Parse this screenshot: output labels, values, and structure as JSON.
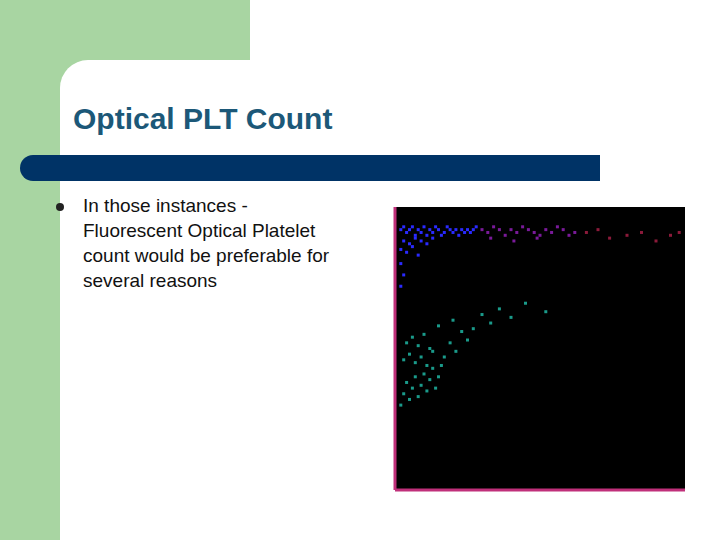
{
  "slide": {
    "title": "Optical PLT Count",
    "bullets": [
      "In those instances - Fluorescent Optical Platelet count would be preferable for several reasons"
    ]
  },
  "chart_data": {
    "type": "scatter",
    "xlim": [
      0,
      100
    ],
    "ylim": [
      0,
      100
    ],
    "xticks": [
      0,
      20,
      40,
      60,
      80,
      100
    ],
    "yticks": [
      0,
      20,
      40,
      60,
      80,
      100
    ],
    "tick_labels": false,
    "grid": false,
    "marker": "square",
    "series": [
      {
        "color": "#2a2aff",
        "x": [
          2,
          3,
          4,
          5,
          6,
          7,
          8,
          9,
          10,
          11,
          12,
          13,
          14,
          15,
          16,
          17,
          18,
          19,
          20,
          21,
          22,
          23,
          24,
          25,
          26,
          27,
          28,
          3,
          5,
          7,
          9,
          11,
          13,
          2,
          4,
          6,
          2,
          3,
          2,
          8
        ],
        "values": [
          92,
          93,
          91,
          92,
          93,
          90,
          92,
          91,
          93,
          90,
          92,
          91,
          93,
          92,
          90,
          91,
          93,
          92,
          91,
          92,
          90,
          92,
          91,
          92,
          91,
          92,
          93,
          88,
          87,
          89,
          88,
          87,
          89,
          85,
          84,
          86,
          80,
          76,
          72,
          83
        ]
      },
      {
        "color": "#7a1a9a",
        "x": [
          30,
          32,
          34,
          36,
          38,
          40,
          42,
          44,
          46,
          48,
          50,
          52,
          54,
          56,
          58,
          60,
          62,
          33,
          41,
          49
        ],
        "values": [
          92,
          91,
          93,
          92,
          90,
          92,
          91,
          93,
          92,
          91,
          90,
          92,
          91,
          93,
          92,
          90,
          91,
          89,
          88,
          89
        ]
      },
      {
        "color": "#8b1a3a",
        "x": [
          66,
          70,
          74,
          80,
          85,
          90,
          95,
          98
        ],
        "values": [
          91,
          92,
          89,
          90,
          91,
          88,
          90,
          91
        ]
      },
      {
        "color": "#1a9a8a",
        "x": [
          2,
          3,
          4,
          5,
          6,
          7,
          8,
          9,
          10,
          11,
          12,
          13,
          14,
          15,
          16,
          3,
          5,
          7,
          9,
          11,
          13,
          4,
          6,
          8,
          10,
          12,
          17,
          19,
          21,
          23,
          25,
          15,
          20,
          27,
          30,
          33,
          36,
          40,
          45,
          52
        ],
        "values": [
          30,
          34,
          38,
          32,
          36,
          40,
          33,
          37,
          41,
          35,
          39,
          43,
          36,
          40,
          44,
          46,
          48,
          45,
          47,
          44,
          49,
          52,
          54,
          51,
          55,
          50,
          47,
          52,
          49,
          56,
          53,
          58,
          60,
          57,
          62,
          59,
          64,
          61,
          66,
          63
        ]
      }
    ]
  }
}
